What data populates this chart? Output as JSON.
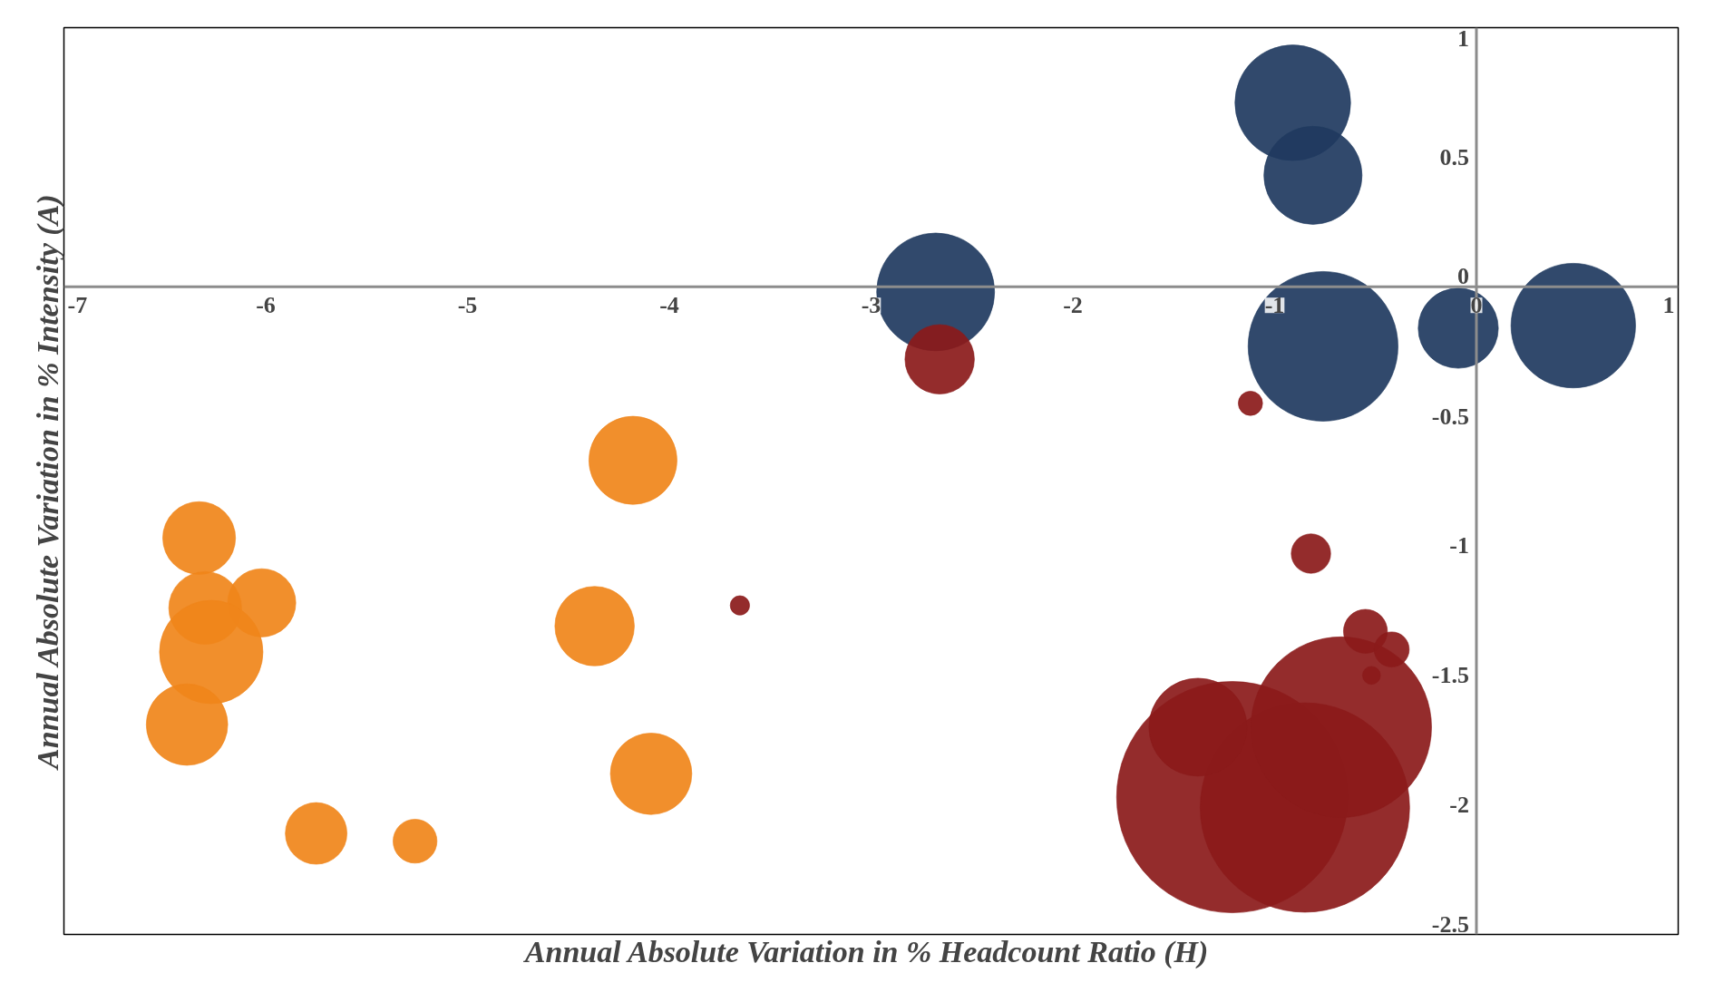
{
  "chart_data": {
    "type": "bubble",
    "xlabel": "Annual Absolute Variation in  % Headcount Ratio (H)",
    "ylabel": "Annual Absolute Variation in % Intensity (A)",
    "xlim": [
      -7,
      1
    ],
    "ylim": [
      -2.5,
      1
    ],
    "xticks": [
      -7,
      -6,
      -5,
      -4,
      -3,
      -2,
      -1,
      0,
      1
    ],
    "yticks": [
      1,
      0.5,
      0,
      -0.5,
      -1,
      -1.5,
      -2,
      -2.5
    ],
    "grid": false,
    "series": [
      {
        "color": "#1f3a5f",
        "x": [
          -0.91,
          -0.81,
          -2.68,
          -0.76,
          -0.09,
          0.48
        ],
        "values": [
          0.71,
          0.43,
          -0.02,
          -0.23,
          -0.16,
          -0.15
        ],
        "sizes": [
          0.25,
          0.18,
          0.26,
          0.42,
          0.12,
          0.29
        ]
      },
      {
        "color": "#8b1a1a",
        "x": [
          -1.21,
          -0.85,
          -0.67,
          -1.38,
          -2.66,
          -1.12,
          -3.65,
          -0.82,
          -0.55,
          -0.42,
          -0.52
        ],
        "values": [
          -1.97,
          -2.01,
          -1.7,
          -1.7,
          -0.28,
          -0.45,
          -1.23,
          -1.03,
          -1.33,
          -1.4,
          -1.5
        ],
        "sizes": [
          1,
          0.82,
          0.61,
          0.18,
          0.09,
          0.011,
          0.007,
          0.029,
          0.036,
          0.023,
          0.006
        ]
      },
      {
        "color": "#f0851a",
        "x": [
          -4.18,
          -6.33,
          -6.02,
          -6.3,
          -6.27,
          -4.37,
          -6.39,
          -4.09,
          -5.75,
          -5.26
        ],
        "values": [
          -0.67,
          -0.97,
          -1.22,
          -1.24,
          -1.41,
          -1.31,
          -1.69,
          -1.88,
          -2.11,
          -2.14
        ],
        "sizes": [
          0.145,
          0.099,
          0.087,
          0.099,
          0.2,
          0.118,
          0.124,
          0.124,
          0.071,
          0.036
        ]
      }
    ]
  }
}
